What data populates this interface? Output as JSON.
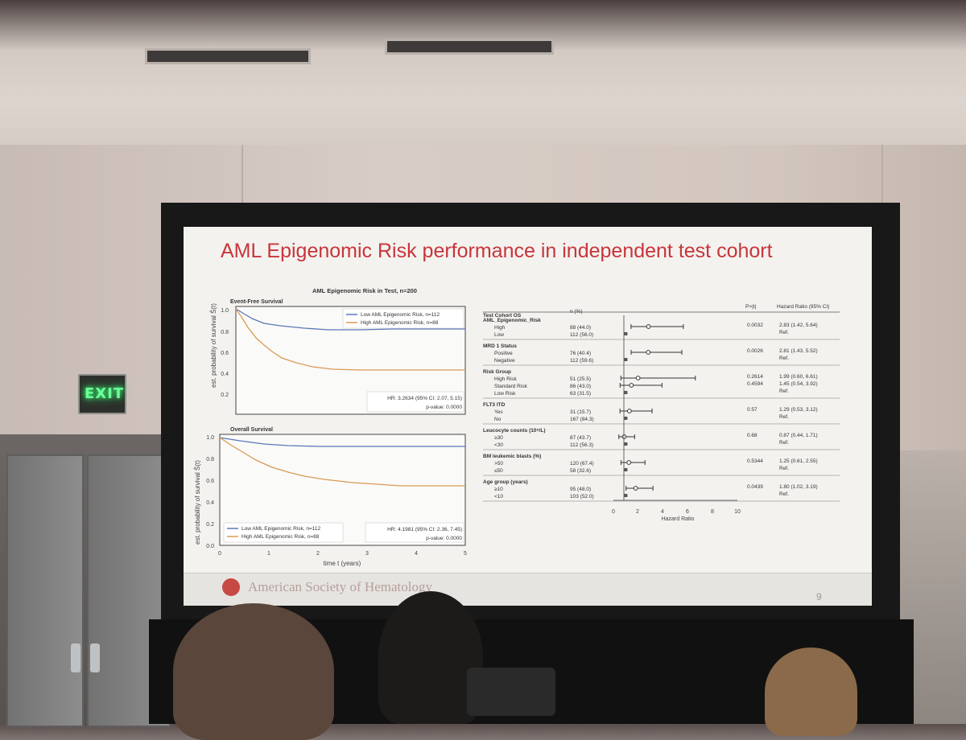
{
  "slide": {
    "title": "AML Epigenomic Risk performance in independent test cohort",
    "footer_org": "American Society of Hematology",
    "page_number": "9"
  },
  "exit_sign": "EXIT",
  "km": {
    "main_title": "AML Epigenomic Risk in Test, n=200",
    "ylabel": "est. probability of survival Ŝ(t)",
    "xlabel": "time t (years)",
    "x_ticks": [
      "0",
      "1",
      "2",
      "3",
      "4",
      "5"
    ],
    "y_ticks": [
      "1.0",
      "0.8",
      "0.6",
      "0.4",
      "0.2",
      "0.0"
    ],
    "colors": {
      "low": "#5a78b8",
      "high": "#d99a54"
    },
    "efs": {
      "title": "Event-Free Survival",
      "legend_low": "Low AML Epigenomic Risk, n=112",
      "legend_high": "High AML Epigenomic Risk, n=88",
      "hr": "HR: 3.2634 (95% CI: 2.07, 5.15)",
      "p": "p-value: 0.0000"
    },
    "os": {
      "title": "Overall Survival",
      "legend_low": "Low AML Epigenomic Risk, n=112",
      "legend_high": "High AML Epigenomic Risk, n=88",
      "hr": "HR: 4.1981 (95% CI: 2.36, 7.45)",
      "p": "p-value: 0.0000"
    }
  },
  "forest": {
    "header_label": "Test Cohort OS",
    "header_n": "n (%)",
    "header_p": "P>|t|",
    "header_hr": "Hazard Ratio (95% CI)",
    "xlabel": "Hazard Ratio",
    "x_ticks": [
      "0",
      "2",
      "4",
      "6",
      "8",
      "10"
    ],
    "groups": [
      {
        "name": "AML_Epigenomic_Risk",
        "rows": [
          {
            "label": "High",
            "n": "88 (44.0)",
            "p": "0.0032",
            "hr_text": "2.83 (1.42, 5.64)"
          },
          {
            "label": "Low",
            "n": "112 (56.0)",
            "p": "",
            "hr_text": "Ref."
          }
        ]
      },
      {
        "name": "MRD 1 Status",
        "rows": [
          {
            "label": "Positive",
            "n": "76 (40.4)",
            "p": "0.0026",
            "hr_text": "2.81 (1.43, 5.52)"
          },
          {
            "label": "Negative",
            "n": "112 (59.6)",
            "p": "",
            "hr_text": "Ref."
          }
        ]
      },
      {
        "name": "Risk Group",
        "rows": [
          {
            "label": "High Risk",
            "n": "51 (25.5)",
            "p": "0.2614",
            "hr_text": "1.99 (0.60, 6.61)"
          },
          {
            "label": "Standard Risk",
            "n": "86 (43.0)",
            "p": "0.4594",
            "hr_text": "1.45 (0.54, 3.92)"
          },
          {
            "label": "Low Risk",
            "n": "63 (31.5)",
            "p": "",
            "hr_text": "Ref."
          }
        ]
      },
      {
        "name": "FLT3 ITD",
        "rows": [
          {
            "label": "Yes",
            "n": "31 (15.7)",
            "p": "0.57",
            "hr_text": "1.29 (0.53, 3.12)"
          },
          {
            "label": "No",
            "n": "167 (84.3)",
            "p": "",
            "hr_text": "Ref."
          }
        ]
      },
      {
        "name": "Leucocyte counts (10⁹/L)",
        "rows": [
          {
            "label": "≥30",
            "n": "87 (43.7)",
            "p": "0.68",
            "hr_text": "0.87 (0.44, 1.71)"
          },
          {
            "label": "<30",
            "n": "112 (56.3)",
            "p": "",
            "hr_text": "Ref."
          }
        ]
      },
      {
        "name": "BM leukemic blasts (%)",
        "rows": [
          {
            "label": ">50",
            "n": "120 (67.4)",
            "p": "0.5344",
            "hr_text": "1.25 (0.61, 2.55)"
          },
          {
            "label": "≤50",
            "n": "58 (32.6)",
            "p": "",
            "hr_text": "Ref."
          }
        ]
      },
      {
        "name": "Age group (years)",
        "rows": [
          {
            "label": "≥10",
            "n": "95 (48.0)",
            "p": "0.0439",
            "hr_text": "1.80 (1.02, 3.19)"
          },
          {
            "label": "<10",
            "n": "103 (52.0)",
            "p": "",
            "hr_text": "Ref."
          }
        ]
      }
    ]
  }
}
